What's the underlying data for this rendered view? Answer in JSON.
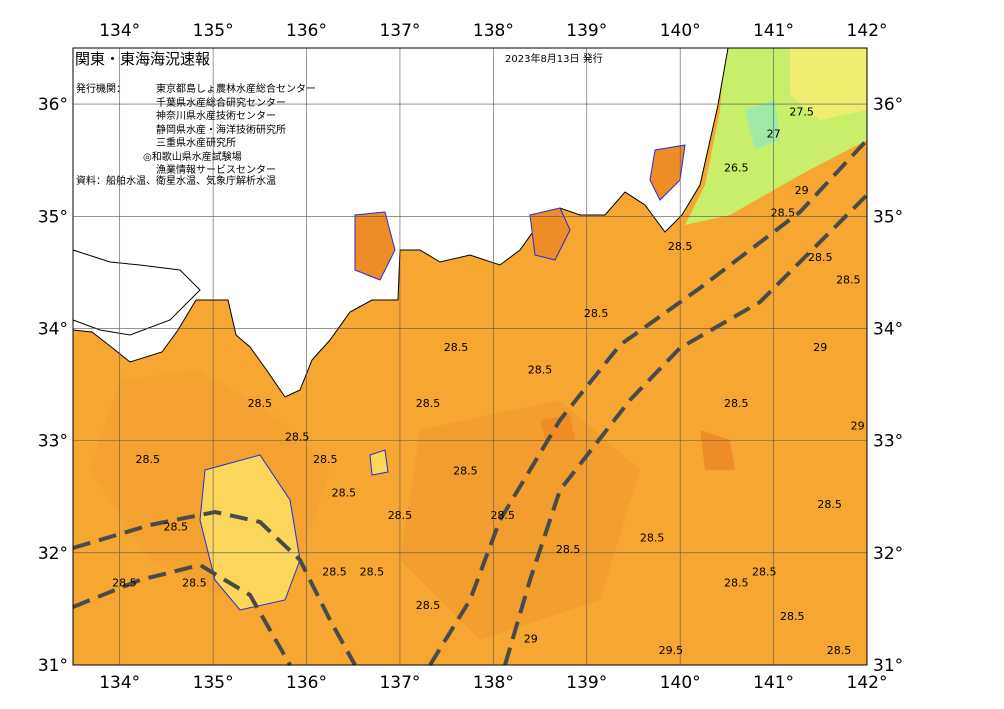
{
  "title": "関東・東海海況速報",
  "issue_date": "2023年8月13日 発行",
  "issuers_label": "発行機関：",
  "issuers": [
    "東京都島しょ農林水産総合センター",
    "千葉県水産総合研究センター",
    "神奈川県水産技術センター",
    "静岡県水産・海洋技術研究所",
    "三重県水産研究所",
    "◎和歌山県水産試験場",
    "漁業情報サービスセンター"
  ],
  "source": "資料：船舶水温、衛星水温、気象庁解析水温",
  "map": {
    "lon_range": [
      133.5,
      142
    ],
    "lat_range": [
      31,
      36.5
    ],
    "lon_ticks": [
      "134°",
      "135°",
      "136°",
      "137°",
      "138°",
      "139°",
      "140°",
      "141°",
      "142°"
    ],
    "lat_ticks": [
      "31°",
      "32°",
      "33°",
      "34°",
      "35°",
      "36°"
    ],
    "colors": {
      "sea": "#f5a732",
      "warm_sea": "#ee8c26",
      "land": "#ffffff",
      "cool": "#c8ee6a",
      "yellow": "#fbd65a",
      "contour": "#2a2ad8",
      "current": "#4a4a4a"
    },
    "contour_labels": [
      {
        "text": "28.5",
        "lon": 134.3,
        "lat": 32.8
      },
      {
        "text": "28.5",
        "lon": 134.6,
        "lat": 32.2
      },
      {
        "text": "28.5",
        "lon": 134.05,
        "lat": 31.7
      },
      {
        "text": "28.5",
        "lon": 134.8,
        "lat": 31.7
      },
      {
        "text": "28.5",
        "lon": 135.5,
        "lat": 33.3
      },
      {
        "text": "28.5",
        "lon": 135.9,
        "lat": 33.0
      },
      {
        "text": "28.5",
        "lon": 136.2,
        "lat": 32.8
      },
      {
        "text": "28.5",
        "lon": 136.4,
        "lat": 32.5
      },
      {
        "text": "28.5",
        "lon": 136.3,
        "lat": 31.8
      },
      {
        "text": "28.5",
        "lon": 136.7,
        "lat": 31.8
      },
      {
        "text": "28.5",
        "lon": 137.0,
        "lat": 32.3
      },
      {
        "text": "28.5",
        "lon": 137.3,
        "lat": 33.3
      },
      {
        "text": "28.5",
        "lon": 137.6,
        "lat": 33.8
      },
      {
        "text": "28.5",
        "lon": 137.7,
        "lat": 32.7
      },
      {
        "text": "28.5",
        "lon": 138.1,
        "lat": 32.3
      },
      {
        "text": "28.5",
        "lon": 138.5,
        "lat": 33.6
      },
      {
        "text": "28.5",
        "lon": 138.8,
        "lat": 32.0
      },
      {
        "text": "28.5",
        "lon": 139.1,
        "lat": 34.1
      },
      {
        "text": "28.5",
        "lon": 139.7,
        "lat": 32.1
      },
      {
        "text": "28.5",
        "lon": 140.0,
        "lat": 34.7
      },
      {
        "text": "28.5",
        "lon": 140.6,
        "lat": 33.3
      },
      {
        "text": "28.5",
        "lon": 140.9,
        "lat": 31.8
      },
      {
        "text": "28.5",
        "lon": 141.1,
        "lat": 35.0
      },
      {
        "text": "28.5",
        "lon": 141.5,
        "lat": 34.6
      },
      {
        "text": "28.5",
        "lon": 141.8,
        "lat": 34.4
      },
      {
        "text": "28.5",
        "lon": 141.6,
        "lat": 32.4
      },
      {
        "text": "28.5",
        "lon": 141.7,
        "lat": 31.1
      },
      {
        "text": "28.5",
        "lon": 141.2,
        "lat": 31.4
      },
      {
        "text": "28.5",
        "lon": 137.3,
        "lat": 31.5
      },
      {
        "text": "28.5",
        "lon": 140.6,
        "lat": 31.7
      },
      {
        "text": "29",
        "lon": 141.3,
        "lat": 35.2
      },
      {
        "text": "29",
        "lon": 141.5,
        "lat": 33.8
      },
      {
        "text": "29",
        "lon": 141.9,
        "lat": 33.1
      },
      {
        "text": "29",
        "lon": 138.4,
        "lat": 31.2
      },
      {
        "text": "29.5",
        "lon": 139.9,
        "lat": 31.1
      },
      {
        "text": "27.5",
        "lon": 141.3,
        "lat": 35.9
      },
      {
        "text": "27",
        "lon": 141.0,
        "lat": 35.7
      },
      {
        "text": "26.5",
        "lon": 140.6,
        "lat": 35.4
      }
    ]
  }
}
